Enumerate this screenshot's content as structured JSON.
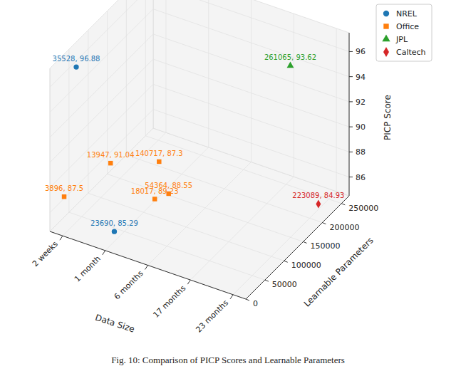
{
  "chart_data": {
    "type": "scatter3d",
    "caption": "Fig. 10: Comparison of PICP Scores and Learnable Parameters",
    "x_label": "Data Size",
    "y_label": "Learnable Parameters",
    "z_label": "PICP Score",
    "categories": [
      "2 weeks",
      "1 month",
      "6 months",
      "17 months",
      "23 months"
    ],
    "ylim": [
      0,
      270000
    ],
    "yticks": [
      0,
      50000,
      100000,
      150000,
      200000,
      250000
    ],
    "zlim": [
      84.5,
      97.5
    ],
    "zticks": [
      86,
      88,
      90,
      92,
      94,
      96
    ],
    "grid": true,
    "legend": "upper right",
    "data_labels": true,
    "series": [
      {
        "name": "NREL",
        "color": "#1f77b4",
        "marker": "circle",
        "x": [
          "2 weeks",
          "1 month"
        ],
        "y": [
          35528,
          23690
        ],
        "z": [
          96.88,
          85.29
        ],
        "value_labels": [
          "35528, 96.88",
          "23690, 85.29"
        ]
      },
      {
        "name": "Office",
        "color": "#ff7f0e",
        "marker": "square",
        "x": [
          "2 weeks",
          "1 month",
          "1 month",
          "6 months",
          "6 months"
        ],
        "y": [
          3896,
          13947,
          140717,
          54364,
          18017
        ],
        "z": [
          87.5,
          91.04,
          87.3,
          88.55,
          89.23
        ],
        "value_labels": [
          "3896, 87.5",
          "13947, 91.04",
          "140717, 87.3",
          "54364, 88.55",
          "18017, 89.23"
        ]
      },
      {
        "name": "JPL",
        "color": "#2ca02c",
        "marker": "triangle",
        "x": [
          "17 months"
        ],
        "y": [
          261065
        ],
        "z": [
          93.62
        ],
        "value_labels": [
          "261065, 93.62"
        ]
      },
      {
        "name": "Caltech",
        "color": "#d62728",
        "marker": "diamond",
        "x": [
          "23 months"
        ],
        "y": [
          223089
        ],
        "z": [
          84.93
        ],
        "value_labels": [
          "223089, 84.93"
        ]
      }
    ]
  }
}
